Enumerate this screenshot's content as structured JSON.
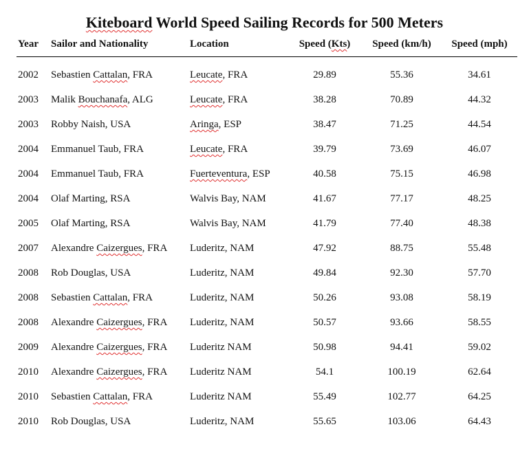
{
  "title_prefix": "Kiteboard",
  "title_rest": " World Speed Sailing Records for 500 Meters",
  "headers": {
    "year": "Year",
    "sailor": "Sailor and Nationality",
    "location": "Location",
    "kts": "Speed (Kts)",
    "kmh": "Speed (km/h)",
    "mph": "Speed (mph)"
  },
  "rows": [
    {
      "year": "2002",
      "sailor": "Sebastien Cattalan, FRA",
      "location": "Leucate, FRA",
      "kts": "29.89",
      "kmh": "55.36",
      "mph": "34.61"
    },
    {
      "year": "2003",
      "sailor": "Malik Bouchanafa, ALG",
      "location": "Leucate, FRA",
      "kts": "38.28",
      "kmh": "70.89",
      "mph": "44.32"
    },
    {
      "year": "2003",
      "sailor": "Robby Naish, USA",
      "location": "Aringa, ESP",
      "kts": "38.47",
      "kmh": "71.25",
      "mph": "44.54"
    },
    {
      "year": "2004",
      "sailor": "Emmanuel Taub, FRA",
      "location": "Leucate, FRA",
      "kts": "39.79",
      "kmh": "73.69",
      "mph": "46.07"
    },
    {
      "year": "2004",
      "sailor": "Emmanuel Taub, FRA",
      "location": "Fuerteventura, ESP",
      "kts": "40.58",
      "kmh": "75.15",
      "mph": "46.98"
    },
    {
      "year": "2004",
      "sailor": "Olaf Marting, RSA",
      "location": "Walvis Bay, NAM",
      "kts": "41.67",
      "kmh": "77.17",
      "mph": "48.25"
    },
    {
      "year": "2005",
      "sailor": "Olaf Marting, RSA",
      "location": "Walvis Bay, NAM",
      "kts": "41.79",
      "kmh": "77.40",
      "mph": "48.38"
    },
    {
      "year": "2007",
      "sailor": "Alexandre Caizergues, FRA",
      "location": "Luderitz, NAM",
      "kts": "47.92",
      "kmh": "88.75",
      "mph": "55.48"
    },
    {
      "year": "2008",
      "sailor": "Rob Douglas, USA",
      "location": "Luderitz, NAM",
      "kts": "49.84",
      "kmh": "92.30",
      "mph": "57.70"
    },
    {
      "year": "2008",
      "sailor": "Sebastien Cattalan, FRA",
      "location": "Luderitz, NAM",
      "kts": "50.26",
      "kmh": "93.08",
      "mph": "58.19"
    },
    {
      "year": "2008",
      "sailor": "Alexandre Caizergues, FRA",
      "location": "Luderitz, NAM",
      "kts": "50.57",
      "kmh": "93.66",
      "mph": "58.55"
    },
    {
      "year": "2009",
      "sailor": "Alexandre Caizergues, FRA",
      "location": "Luderitz NAM",
      "kts": "50.98",
      "kmh": "94.41",
      "mph": "59.02"
    },
    {
      "year": "2010",
      "sailor": "Alexandre Caizergues, FRA",
      "location": "Luderitz NAM",
      "kts": "54.1",
      "kmh": "100.19",
      "mph": "62.64"
    },
    {
      "year": "2010",
      "sailor": "Sebastien Cattalan, FRA",
      "location": "Luderitz NAM",
      "kts": "55.49",
      "kmh": "102.77",
      "mph": "64.25"
    },
    {
      "year": "2010",
      "sailor": "Rob Douglas, USA",
      "location": "Luderitz, NAM",
      "kts": "55.65",
      "kmh": "103.06",
      "mph": "64.43"
    }
  ],
  "spellcheck_words": [
    "Kiteboard",
    "Cattalan",
    "Bouchanafa",
    "Caizergues",
    "Leucate",
    "Aringa",
    "Fuerteventura",
    "Kts"
  ]
}
